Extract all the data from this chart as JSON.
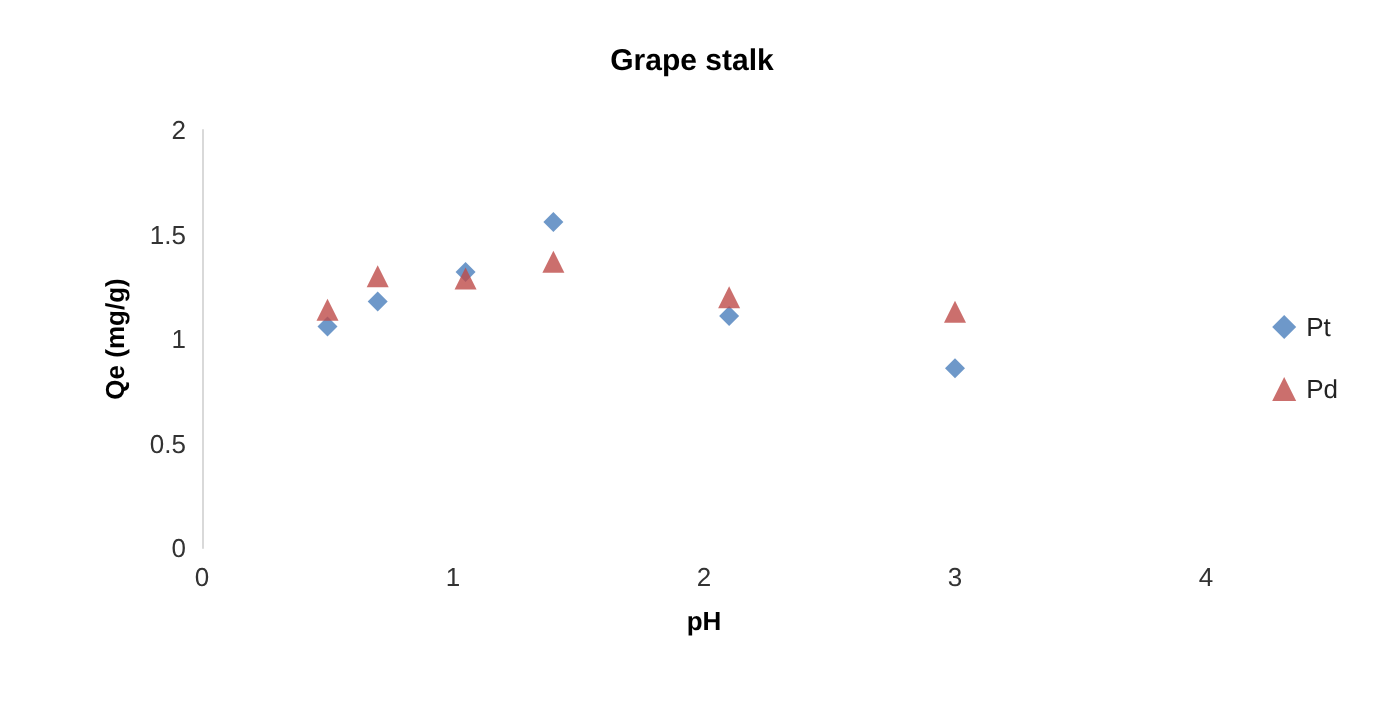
{
  "chart_data": {
    "type": "scatter",
    "title": "Grape stalk",
    "xlabel": "pH",
    "ylabel": "Qe (mg/g)",
    "series": [
      {
        "name": "Pt",
        "color": "#4a7ebb",
        "marker": "diamond",
        "x": [
          0.5,
          0.7,
          1.05,
          1.4,
          2.1,
          3
        ],
        "values": [
          1.06,
          1.18,
          1.32,
          1.56,
          1.11,
          0.86
        ]
      },
      {
        "name": "Pd",
        "color": "#be4b48",
        "marker": "triangle",
        "x": [
          0.5,
          0.7,
          1.05,
          1.4,
          2.1,
          3
        ],
        "values": [
          1.14,
          1.3,
          1.29,
          1.37,
          1.2,
          1.13
        ]
      }
    ],
    "xlim": [
      0,
      4
    ],
    "xticks": [
      0,
      1,
      2,
      3,
      4
    ],
    "ylim": [
      0,
      2
    ],
    "yticks": [
      0,
      0.5,
      1,
      1.5,
      2
    ],
    "grid": false,
    "legend": "right"
  }
}
